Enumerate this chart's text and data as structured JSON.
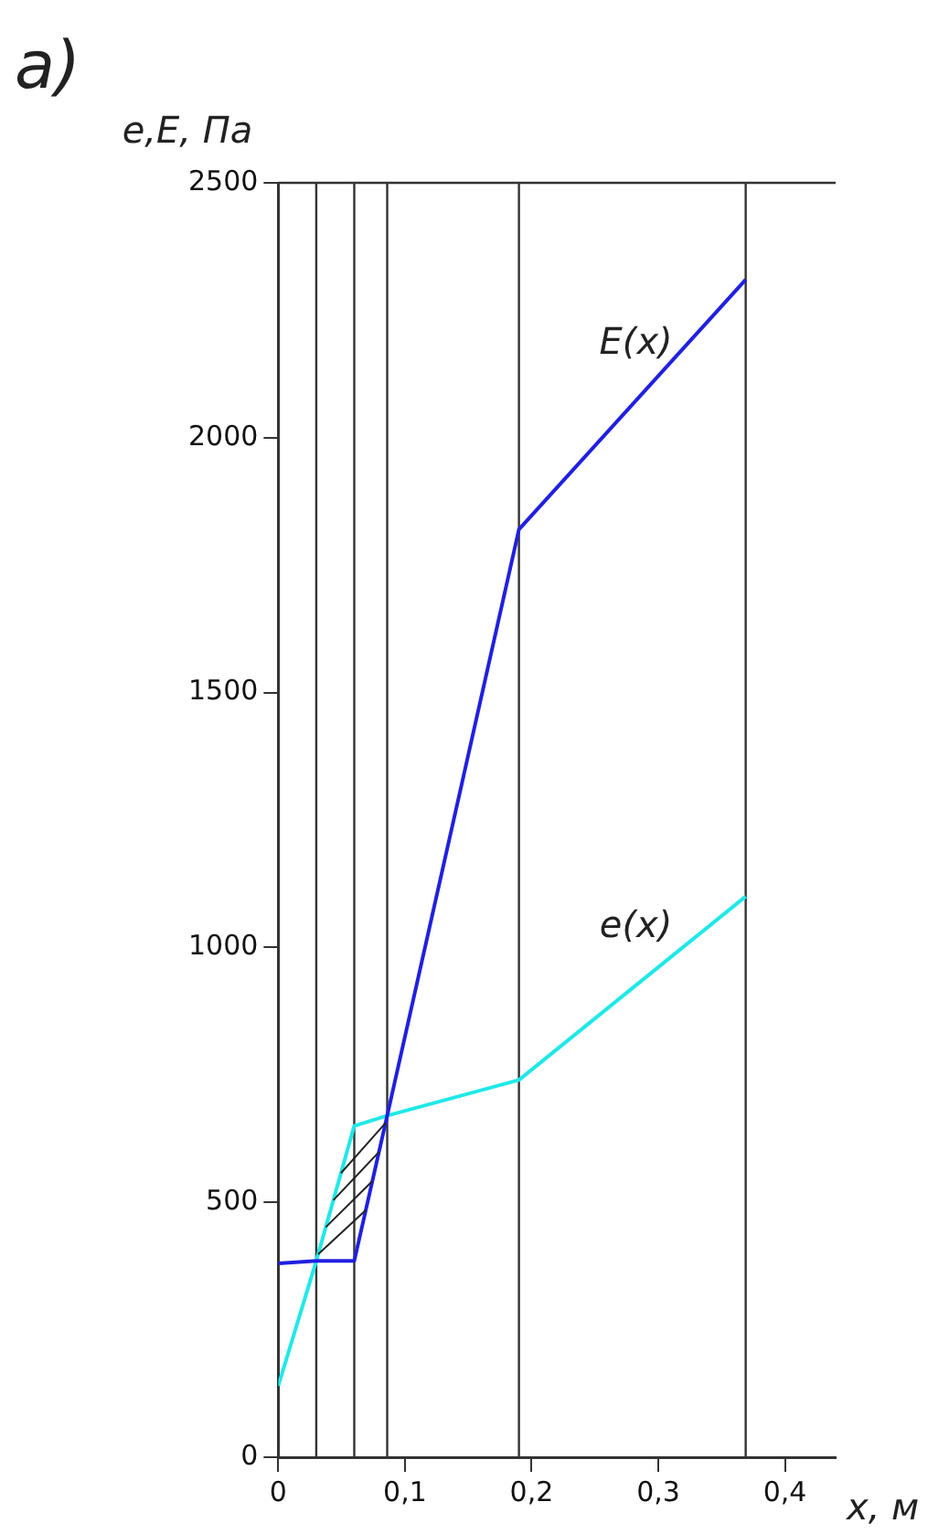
{
  "chart_data": {
    "type": "line",
    "title": "a)",
    "xlabel": "x, м",
    "ylabel": "e,E, Па",
    "x": [
      0,
      0.03,
      0.06,
      0.086,
      0.19,
      0.369
    ],
    "series": [
      {
        "name": "E(x)",
        "color": "#2020e0",
        "values": [
          380,
          385,
          385,
          670,
          1820,
          2310
        ]
      },
      {
        "name": "e(x)",
        "color": "#20e8e8",
        "values": [
          140,
          385,
          650,
          670,
          740,
          1100
        ]
      }
    ],
    "xlim": [
      0,
      0.44
    ],
    "xticks": [
      0,
      {
        "value": 0.1,
        "label": "0,1"
      },
      {
        "value": 0.2,
        "label": "0,2"
      },
      {
        "value": 0.3,
        "label": "0,3"
      },
      {
        "value": 0.4,
        "label": "0,4"
      }
    ],
    "ylim": [
      0,
      2500
    ],
    "yticks": [
      0,
      500,
      1000,
      1500,
      2000,
      2500
    ],
    "ref_lines": [
      {
        "axis": "x",
        "value": 0.03,
        "color": "#333333"
      },
      {
        "axis": "x",
        "value": 0.06,
        "color": "#333333"
      },
      {
        "axis": "x",
        "value": 0.086,
        "color": "#333333"
      },
      {
        "axis": "x",
        "value": 0.19,
        "color": "#333333"
      },
      {
        "axis": "x",
        "value": 0.369,
        "color": "#333333"
      },
      {
        "axis": "y",
        "value": 2500,
        "color": "#333333"
      }
    ],
    "grid": false,
    "legend": false,
    "marker": "none",
    "line_style": "solid"
  }
}
